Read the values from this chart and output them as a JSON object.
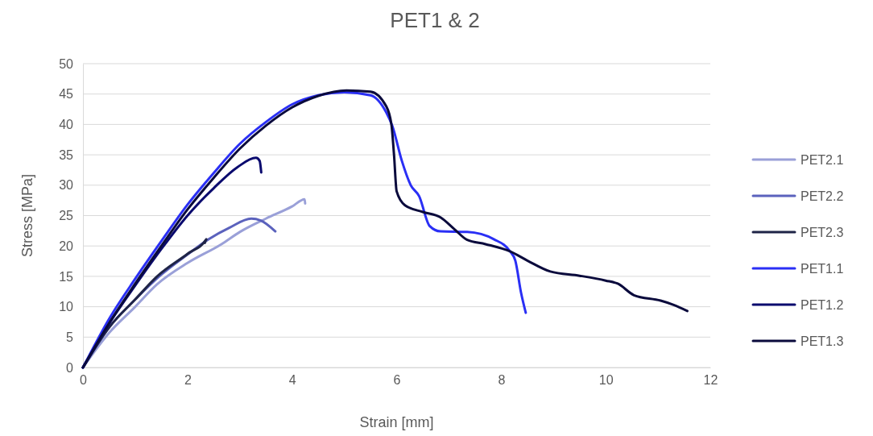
{
  "chart_data": {
    "type": "line",
    "title": "PET1 & 2",
    "xlabel": "Strain [mm]",
    "ylabel": "Stress [MPa]",
    "xlim": [
      0,
      12
    ],
    "xticks": [
      0,
      2,
      4,
      6,
      8,
      10,
      12
    ],
    "ylim": [
      0,
      50
    ],
    "yticks": [
      0,
      5,
      10,
      15,
      20,
      25,
      30,
      35,
      40,
      45,
      50
    ],
    "grid": "y",
    "legend": "right",
    "marker": "none",
    "line_style": "solid",
    "series": [
      {
        "name": "PET2.1",
        "color": "#9aa0d8",
        "x": [
          0,
          0.5,
          1,
          1.42,
          2,
          2.65,
          3,
          3.5,
          4,
          4.24,
          4.25
        ],
        "values": [
          0,
          5.7,
          10,
          13.7,
          17.2,
          20.3,
          22.3,
          24.5,
          26.5,
          27.7,
          27
        ]
      },
      {
        "name": "PET2.2",
        "color": "#5b62bd",
        "x": [
          0,
          0.5,
          1,
          1.5,
          2,
          2.4,
          2.8,
          3.22,
          3.4,
          3.68
        ],
        "values": [
          0,
          6.6,
          11.2,
          15.3,
          18.6,
          21.1,
          23,
          24.5,
          24.2,
          22.4
        ]
      },
      {
        "name": "PET2.3",
        "color": "#1f2447",
        "x": [
          0,
          0.5,
          1,
          1.42,
          2,
          2.36,
          2.33
        ],
        "values": [
          0,
          6.6,
          11.2,
          15,
          18.7,
          21.1,
          20.5
        ]
      },
      {
        "name": "PET1.1",
        "color": "#2a2ff5",
        "x": [
          0,
          0.5,
          1,
          1.5,
          2,
          2.5,
          3,
          3.5,
          4,
          4.5,
          5,
          5.5,
          5.8,
          5.92,
          6.1,
          6.27,
          6.43,
          6.63,
          6.84,
          7.35,
          7.86,
          8.17,
          8.27,
          8.38,
          8.47
        ],
        "values": [
          0,
          8,
          14.6,
          20.8,
          26.8,
          32,
          36.8,
          40.4,
          43.3,
          44.8,
          45.3,
          44.8,
          42,
          39.7,
          34,
          30,
          28.2,
          23.3,
          22.4,
          22.3,
          21.1,
          19.1,
          17.6,
          12.3,
          9
        ]
      },
      {
        "name": "PET1.2",
        "color": "#0a0a6e",
        "x": [
          0,
          0.5,
          1,
          1.5,
          2,
          2.5,
          2.96,
          3.31,
          3.38,
          3.41
        ],
        "values": [
          0,
          7.2,
          13.5,
          19.5,
          25,
          29.5,
          33,
          34.5,
          34,
          32.1
        ]
      },
      {
        "name": "PET1.3",
        "color": "#0a0a3c",
        "x": [
          0,
          0.5,
          1,
          1.5,
          2,
          2.5,
          3,
          3.5,
          4,
          4.5,
          5.04,
          5.5,
          5.8,
          5.9,
          5.95,
          6,
          6.16,
          6.5,
          6.84,
          7.1,
          7.35,
          7.7,
          8.17,
          8.5,
          8.94,
          9.5,
          10,
          10.23,
          10.54,
          11.05,
          11.3,
          11.56
        ],
        "values": [
          0,
          7.3,
          13.8,
          20,
          26,
          31.2,
          36,
          39.8,
          42.8,
          44.7,
          45.6,
          45.4,
          43,
          40,
          35,
          29,
          26.7,
          25.6,
          24.7,
          22.8,
          21,
          20.3,
          19.1,
          17.6,
          15.8,
          15.1,
          14.3,
          13.8,
          11.9,
          11,
          10.3,
          9.3
        ]
      }
    ]
  }
}
